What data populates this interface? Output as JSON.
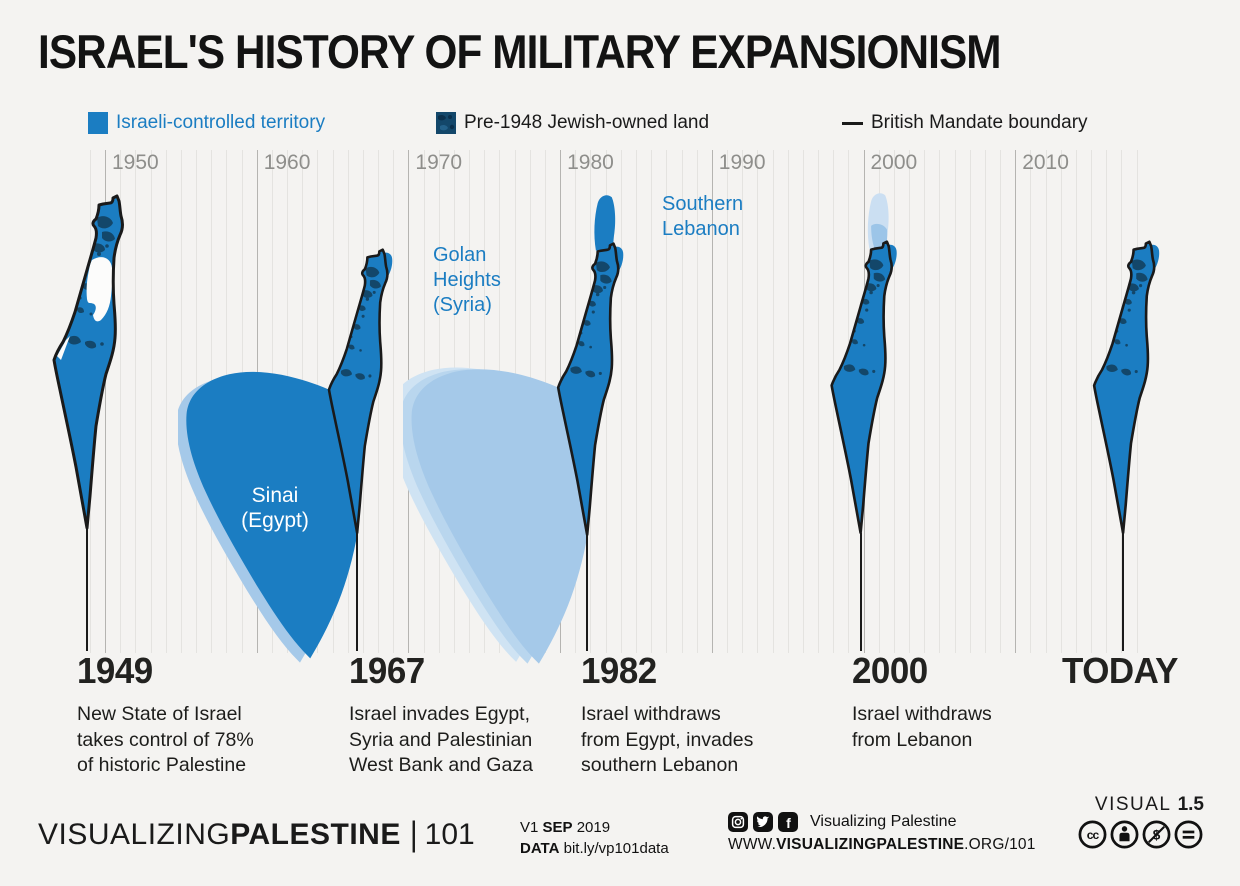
{
  "title": "ISRAEL'S HISTORY OF MILITARY EXPANSIONISM",
  "colors": {
    "background": "#f4f3f1",
    "israeli_territory_blue": "#1b7dc2",
    "jewish_owned_land_dark": "#13476a",
    "mandate_boundary_black": "#1a1a1a",
    "withdrawn_light_1": "#cfe3f3",
    "withdrawn_light_2": "#b9d6ee",
    "withdrawn_light_3": "#a5c9e9",
    "grid_year_line": "#e4e3e0",
    "grid_decade_line": "#b5b4b1",
    "decade_label_gray": "#8e8e8b"
  },
  "legend": {
    "items": [
      {
        "label": "Israeli-controlled territory",
        "swatch": "solid-blue-square"
      },
      {
        "label": "Pre-1948 Jewish-owned land",
        "swatch": "textured-dark-square"
      },
      {
        "label": "British Mandate boundary",
        "swatch": "black-line"
      }
    ]
  },
  "timeline": {
    "start_year": 1949,
    "end_year": 2018,
    "decades": [
      "1950",
      "1960",
      "1970",
      "1980",
      "1990",
      "2000",
      "2010"
    ]
  },
  "map_labels": {
    "golan": "Golan\nHeights\n(Syria)",
    "lebanon": "Southern\nLebanon",
    "sinai": "Sinai\n(Egypt)"
  },
  "events": [
    {
      "year": "1949",
      "description": "New State of Israel\ntakes control of 78%\nof historic Palestine"
    },
    {
      "year": "1967",
      "description": "Israel invades Egypt,\nSyria and Palestinian\nWest Bank and Gaza"
    },
    {
      "year": "1982",
      "description": "Israel withdraws\nfrom Egypt, invades\nsouthern Lebanon"
    },
    {
      "year": "2000",
      "description": "Israel withdraws\nfrom Lebanon"
    },
    {
      "year": "TODAY",
      "description": ""
    }
  ],
  "footer": {
    "logo": {
      "part1": "VISUALIZING",
      "part2": "PALESTINE",
      "separator": "|",
      "number": "101"
    },
    "version_line": {
      "prefix": "V1 ",
      "month": "SEP",
      "year": " 2019"
    },
    "data_line": {
      "label": "DATA",
      "value": " bit.ly/vp101data"
    },
    "social": {
      "handle": "Visualizing Palestine",
      "icons": [
        "instagram-icon",
        "twitter-icon",
        "facebook-icon"
      ]
    },
    "website": {
      "prefix": "WWW.",
      "bold": "VISUALIZINGPALESTINE",
      "suffix": ".ORG/101"
    },
    "visual_label": {
      "text": "VISUAL ",
      "number": "1.5"
    },
    "license_icons": [
      "cc-icon",
      "cc-by-icon",
      "cc-nc-icon",
      "cc-nd-icon"
    ]
  }
}
